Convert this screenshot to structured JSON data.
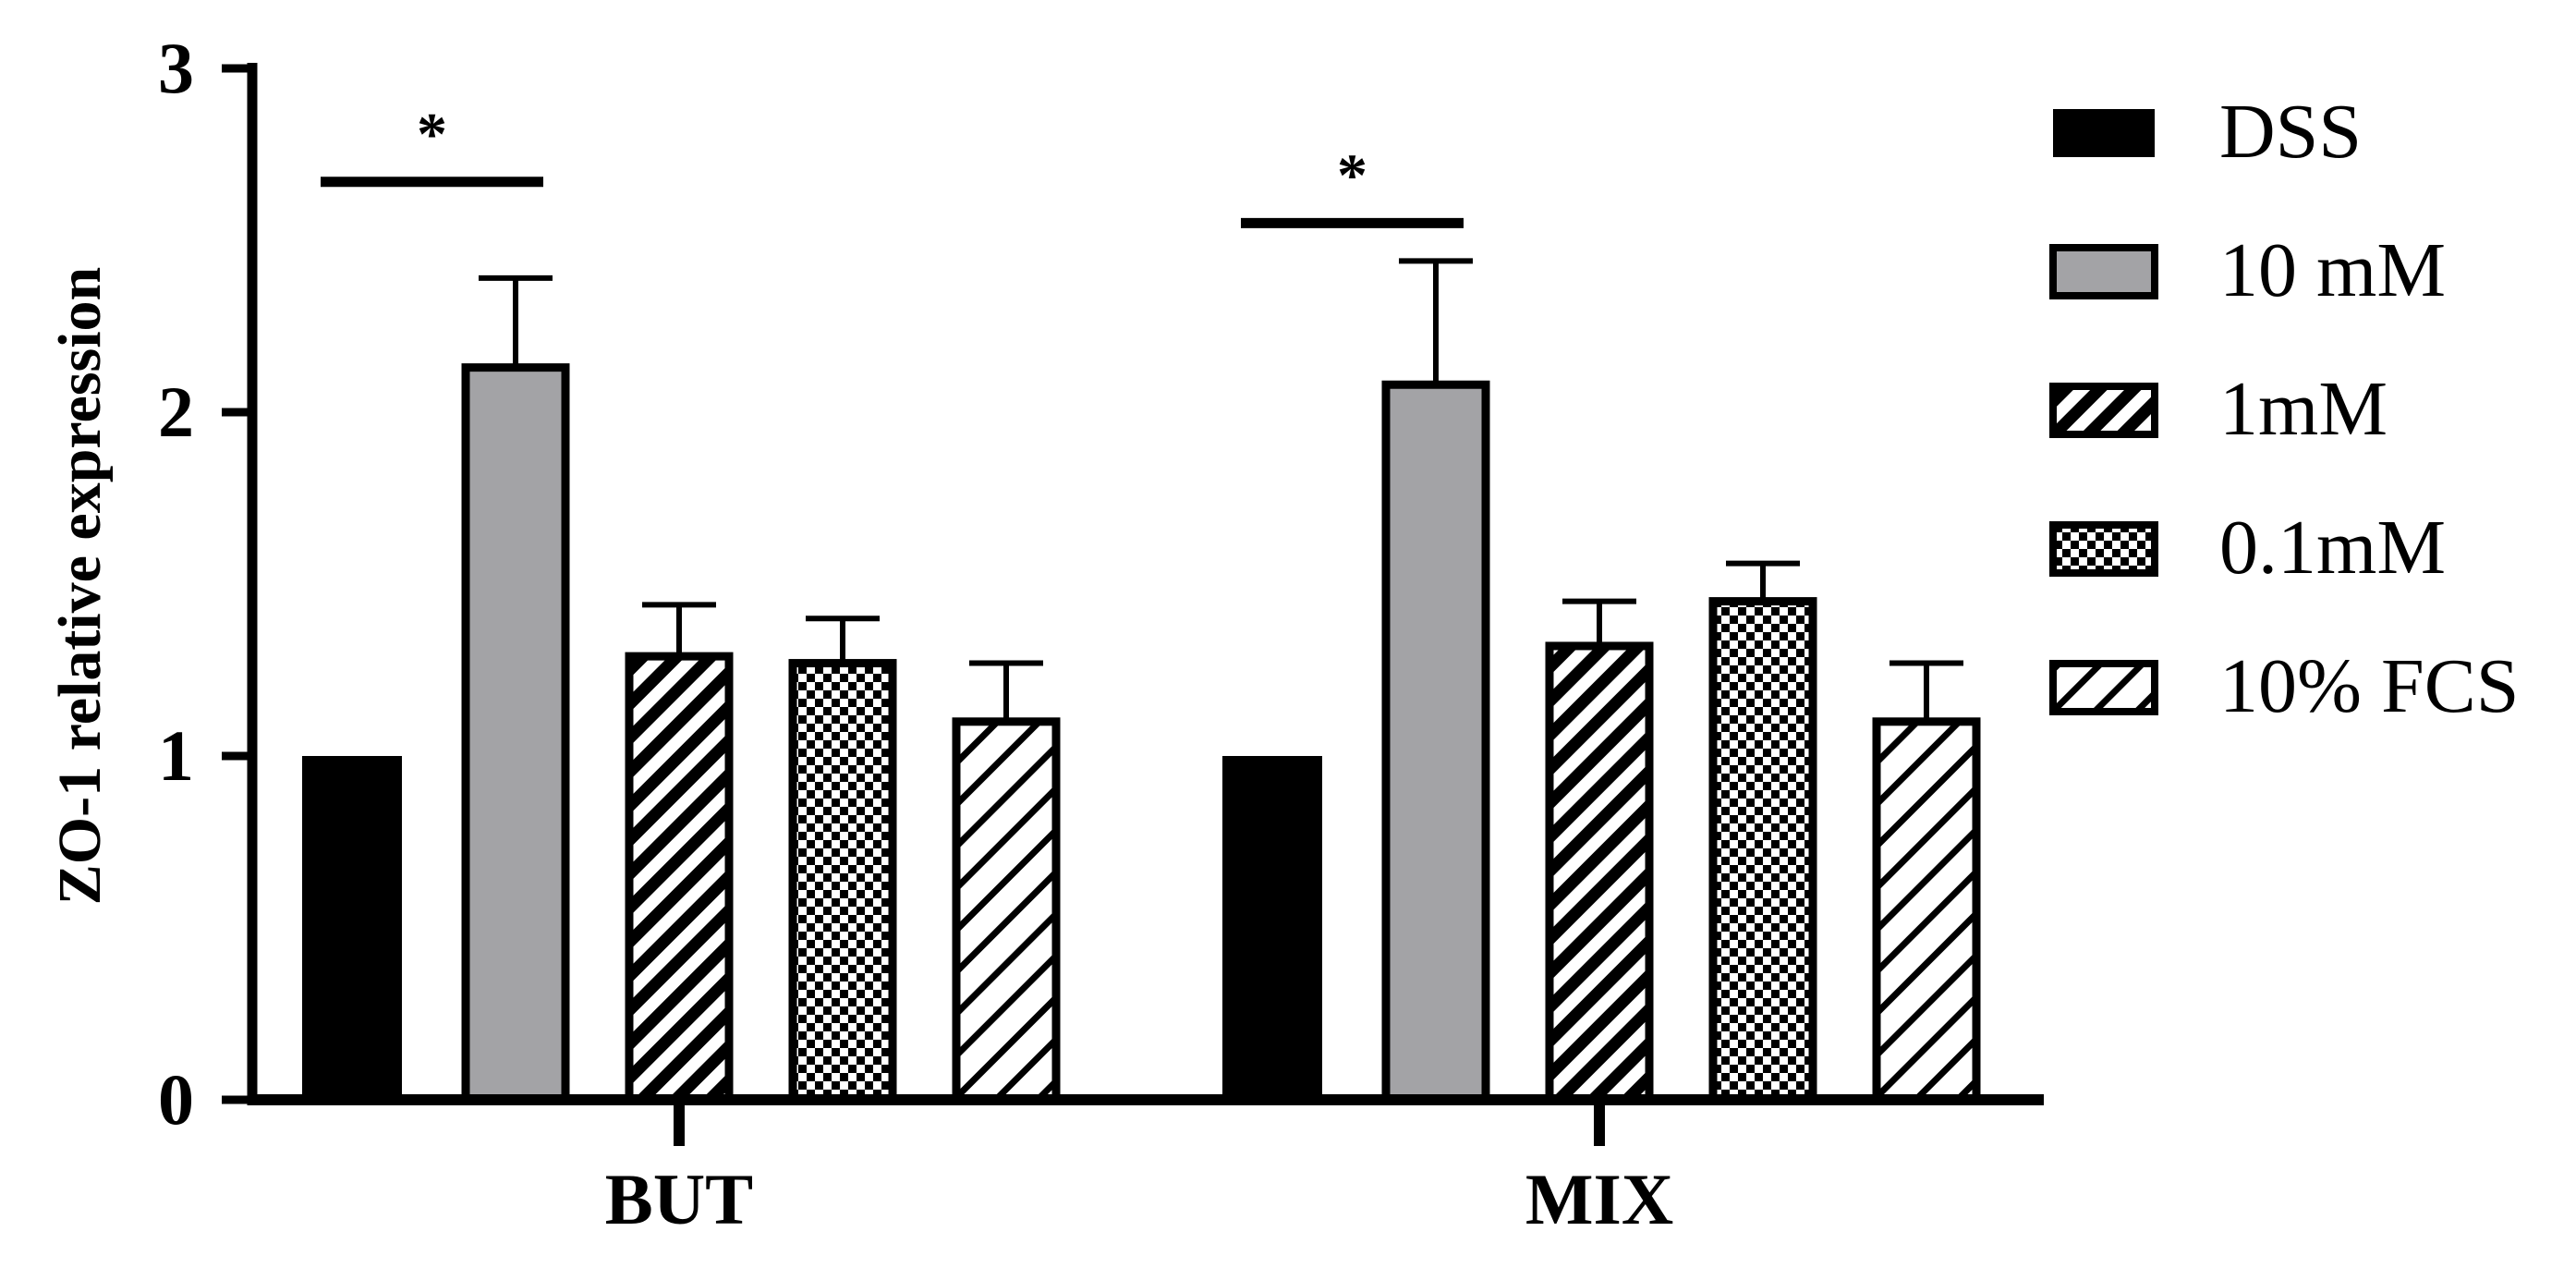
{
  "chart_data": {
    "type": "bar",
    "ylabel": "ZO-1 relative expression",
    "xlabel": "",
    "ylim": [
      0,
      3
    ],
    "yticks": [
      0,
      1,
      2,
      3
    ],
    "categories": [
      "BUT",
      "MIX"
    ],
    "series": [
      {
        "name": "DSS",
        "values": [
          1.0,
          1.0
        ],
        "errors": [
          0,
          0
        ],
        "fill": "#000000",
        "pattern": "solid"
      },
      {
        "name": "10 mM",
        "values": [
          2.13,
          2.08
        ],
        "errors": [
          0.26,
          0.36
        ],
        "fill": "#a3a3a6",
        "pattern": "solid"
      },
      {
        "name": "1mM",
        "values": [
          1.29,
          1.32
        ],
        "errors": [
          0.15,
          0.13
        ],
        "fill": "#000000",
        "pattern": "hatch-dense"
      },
      {
        "name": "0.1mM",
        "values": [
          1.27,
          1.45
        ],
        "errors": [
          0.13,
          0.11
        ],
        "fill": "#000000",
        "pattern": "checker"
      },
      {
        "name": "10% FCS",
        "values": [
          1.1,
          1.1
        ],
        "errors": [
          0.17,
          0.17
        ],
        "fill": "#ffffff",
        "pattern": "hatch-sparse"
      }
    ],
    "significance": [
      {
        "category": "BUT",
        "label": "*",
        "y": 2.67
      },
      {
        "category": "MIX",
        "label": "*",
        "y": 2.55
      }
    ],
    "legend_position": "right",
    "grid": false,
    "colors": {
      "axis": "#000000",
      "gray_bar": "#a3a3a6"
    }
  }
}
